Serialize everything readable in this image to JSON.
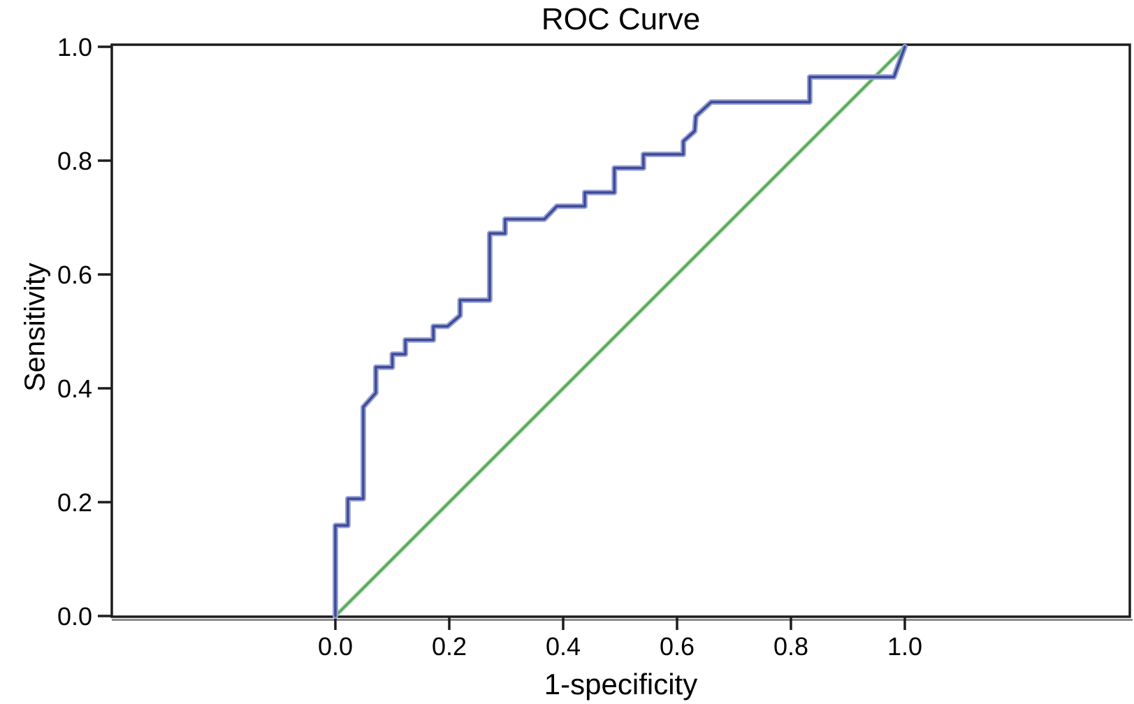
{
  "chart": {
    "title": "ROC Curve",
    "xlabel": "1-specificity",
    "ylabel": "Sensitivity"
  },
  "chart_data": {
    "type": "line",
    "title": "ROC Curve",
    "xlabel": "1-specificity",
    "ylabel": "Sensitivity",
    "xlim": [
      0.0,
      1.0
    ],
    "ylim": [
      0.0,
      1.0
    ],
    "axis_extends_beyond_data": true,
    "grid": false,
    "legend_position": "none",
    "xtick_values": [
      0.0,
      0.2,
      0.4,
      0.6,
      0.8,
      1.0
    ],
    "ytick_values": [
      0.0,
      0.2,
      0.4,
      0.6,
      0.8,
      1.0
    ],
    "xtick_labels": [
      "0.0",
      "0.2",
      "0.4",
      "0.6",
      "0.8",
      "1.0"
    ],
    "ytick_labels": [
      "0.0",
      "0.2",
      "0.4",
      "0.6",
      "0.8",
      "1.0"
    ],
    "series": [
      {
        "name": "ROC curve",
        "style": "step",
        "color": "#3E4A9B",
        "halo_color": "#99A2D2",
        "points": [
          [
            0.0,
            0.0
          ],
          [
            0.0,
            0.159
          ],
          [
            0.022,
            0.159
          ],
          [
            0.022,
            0.206
          ],
          [
            0.049,
            0.206
          ],
          [
            0.049,
            0.367
          ],
          [
            0.071,
            0.392
          ],
          [
            0.071,
            0.437
          ],
          [
            0.1,
            0.437
          ],
          [
            0.1,
            0.46
          ],
          [
            0.123,
            0.46
          ],
          [
            0.123,
            0.485
          ],
          [
            0.172,
            0.485
          ],
          [
            0.172,
            0.509
          ],
          [
            0.197,
            0.509
          ],
          [
            0.219,
            0.528
          ],
          [
            0.219,
            0.555
          ],
          [
            0.271,
            0.555
          ],
          [
            0.271,
            0.672
          ],
          [
            0.298,
            0.672
          ],
          [
            0.298,
            0.697
          ],
          [
            0.367,
            0.697
          ],
          [
            0.389,
            0.72
          ],
          [
            0.438,
            0.72
          ],
          [
            0.438,
            0.744
          ],
          [
            0.49,
            0.744
          ],
          [
            0.49,
            0.787
          ],
          [
            0.541,
            0.787
          ],
          [
            0.541,
            0.811
          ],
          [
            0.611,
            0.811
          ],
          [
            0.611,
            0.834
          ],
          [
            0.631,
            0.852
          ],
          [
            0.633,
            0.878
          ],
          [
            0.66,
            0.903
          ],
          [
            0.833,
            0.903
          ],
          [
            0.833,
            0.947
          ],
          [
            0.981,
            0.947
          ],
          [
            1.0,
            1.0
          ]
        ]
      },
      {
        "name": "Reference diagonal",
        "style": "line",
        "color": "#55A755",
        "halo_color": "#A9D3A9",
        "points": [
          [
            0.0,
            0.0
          ],
          [
            1.0,
            1.0
          ]
        ]
      }
    ],
    "colors": {
      "axis_line": "#1C1C1C",
      "axis_shadow": "#8C8C8C",
      "text": "#000000",
      "plot_background": "#FFFFFF"
    }
  }
}
